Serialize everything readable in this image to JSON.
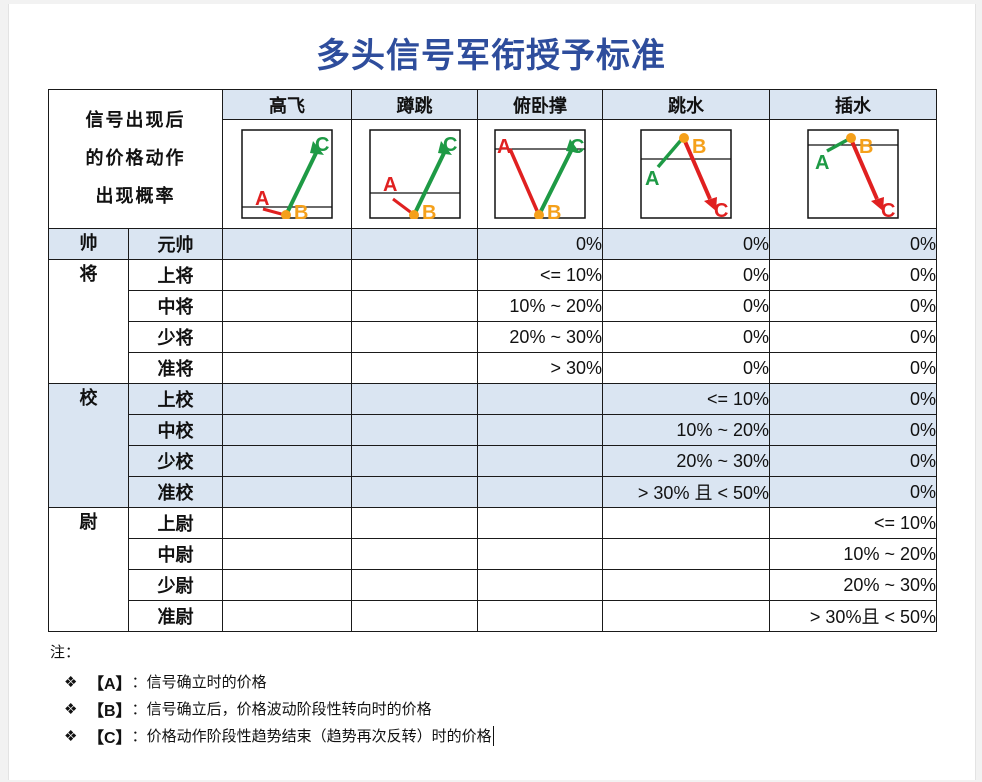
{
  "title": "多头信号军衔授予标准",
  "corner_label": [
    "信号出现后",
    "的价格动作",
    "出现概率"
  ],
  "patterns": [
    {
      "name": "高飞"
    },
    {
      "name": "蹲跳"
    },
    {
      "name": "俯卧撑"
    },
    {
      "name": "跳水"
    },
    {
      "name": "插水"
    }
  ],
  "point_labels": {
    "a": "A",
    "b": "B",
    "c": "C"
  },
  "colors": {
    "up": "#1e9a45",
    "down": "#e02020",
    "point_b": "#f5a01a",
    "header_bg": "#dae5f2",
    "title": "#2e4d9c"
  },
  "groups": [
    {
      "name": "帅",
      "shaded": true,
      "rows": [
        {
          "rank": "元帅",
          "values": [
            "",
            "",
            "0%",
            "0%",
            "0%"
          ]
        }
      ]
    },
    {
      "name": "将",
      "shaded": false,
      "rows": [
        {
          "rank": "上将",
          "values": [
            "",
            "",
            "<= 10%",
            "0%",
            "0%"
          ]
        },
        {
          "rank": "中将",
          "values": [
            "",
            "",
            "10% ~ 20%",
            "0%",
            "0%"
          ]
        },
        {
          "rank": "少将",
          "values": [
            "",
            "",
            "20% ~ 30%",
            "0%",
            "0%"
          ]
        },
        {
          "rank": "准将",
          "values": [
            "",
            "",
            "> 30%",
            "0%",
            "0%"
          ]
        }
      ]
    },
    {
      "name": "校",
      "shaded": true,
      "rows": [
        {
          "rank": "上校",
          "values": [
            "",
            "",
            "",
            "<= 10%",
            "0%"
          ]
        },
        {
          "rank": "中校",
          "values": [
            "",
            "",
            "",
            "10% ~ 20%",
            "0%"
          ]
        },
        {
          "rank": "少校",
          "values": [
            "",
            "",
            "",
            "20% ~ 30%",
            "0%"
          ]
        },
        {
          "rank": "准校",
          "values": [
            "",
            "",
            "",
            "> 30% 且 < 50%",
            "0%"
          ]
        }
      ]
    },
    {
      "name": "尉",
      "shaded": false,
      "rows": [
        {
          "rank": "上尉",
          "values": [
            "",
            "",
            "",
            "",
            "<= 10%"
          ]
        },
        {
          "rank": "中尉",
          "values": [
            "",
            "",
            "",
            "",
            "10% ~ 20%"
          ]
        },
        {
          "rank": "少尉",
          "values": [
            "",
            "",
            "",
            "",
            "20% ~ 30%"
          ]
        },
        {
          "rank": "准尉",
          "values": [
            "",
            "",
            "",
            "",
            "> 30%且 < 50%"
          ]
        }
      ]
    }
  ],
  "notes": {
    "label": "注：",
    "bullet": "❖",
    "items": [
      {
        "key": "【A】",
        "sep": "：",
        "text": "信号确立时的价格"
      },
      {
        "key": "【B】",
        "sep": "：",
        "text": "信号确立后，价格波动阶段性转向时的价格"
      },
      {
        "key": "【C】",
        "sep": "：",
        "text": "价格动作阶段性趋势结束（趋势再次反转）时的价格"
      }
    ]
  }
}
